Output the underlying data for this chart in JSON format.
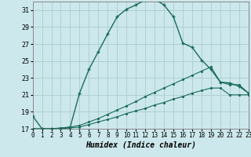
{
  "xlabel": "Humidex (Indice chaleur)",
  "bg_color": "#cce8ec",
  "grid_color": "#aacccc",
  "line_color": "#1a6b5a",
  "xlim": [
    0,
    23
  ],
  "ylim": [
    17,
    32
  ],
  "ytick_vals": [
    17,
    19,
    21,
    23,
    25,
    27,
    29,
    31
  ],
  "xtick_vals": [
    0,
    1,
    2,
    3,
    4,
    5,
    6,
    7,
    8,
    9,
    10,
    11,
    12,
    13,
    14,
    15,
    16,
    17,
    18,
    19,
    20,
    21,
    22,
    23
  ],
  "series1_x": [
    0,
    1,
    2,
    3,
    4,
    5,
    6,
    7,
    8,
    9,
    10,
    11,
    12,
    13,
    14,
    15,
    16,
    17,
    18,
    19,
    20,
    21,
    22,
    23
  ],
  "series1_y": [
    18.5,
    17.0,
    17.0,
    17.0,
    17.2,
    21.2,
    24.0,
    26.1,
    28.2,
    30.2,
    31.1,
    31.6,
    32.2,
    32.3,
    31.6,
    30.2,
    27.1,
    26.6,
    25.1,
    24.0,
    22.5,
    22.4,
    22.0,
    21.2
  ],
  "series2_x": [
    0,
    1,
    2,
    3,
    4,
    5,
    6,
    7,
    8,
    9,
    10,
    11,
    12,
    13,
    14,
    15,
    16,
    17,
    18,
    19,
    20,
    21,
    22,
    23
  ],
  "series2_y": [
    17.0,
    17.0,
    17.0,
    17.1,
    17.2,
    17.4,
    17.8,
    18.2,
    18.7,
    19.2,
    19.7,
    20.2,
    20.8,
    21.3,
    21.8,
    22.3,
    22.8,
    23.3,
    23.8,
    24.3,
    22.5,
    22.2,
    22.2,
    21.2
  ],
  "series3_x": [
    0,
    1,
    2,
    3,
    4,
    5,
    6,
    7,
    8,
    9,
    10,
    11,
    12,
    13,
    14,
    15,
    16,
    17,
    18,
    19,
    20,
    21,
    22,
    23
  ],
  "series3_y": [
    17.0,
    17.0,
    17.0,
    17.0,
    17.1,
    17.2,
    17.5,
    17.8,
    18.1,
    18.4,
    18.8,
    19.1,
    19.4,
    19.8,
    20.1,
    20.5,
    20.8,
    21.2,
    21.5,
    21.8,
    21.8,
    21.0,
    21.0,
    21.0
  ]
}
